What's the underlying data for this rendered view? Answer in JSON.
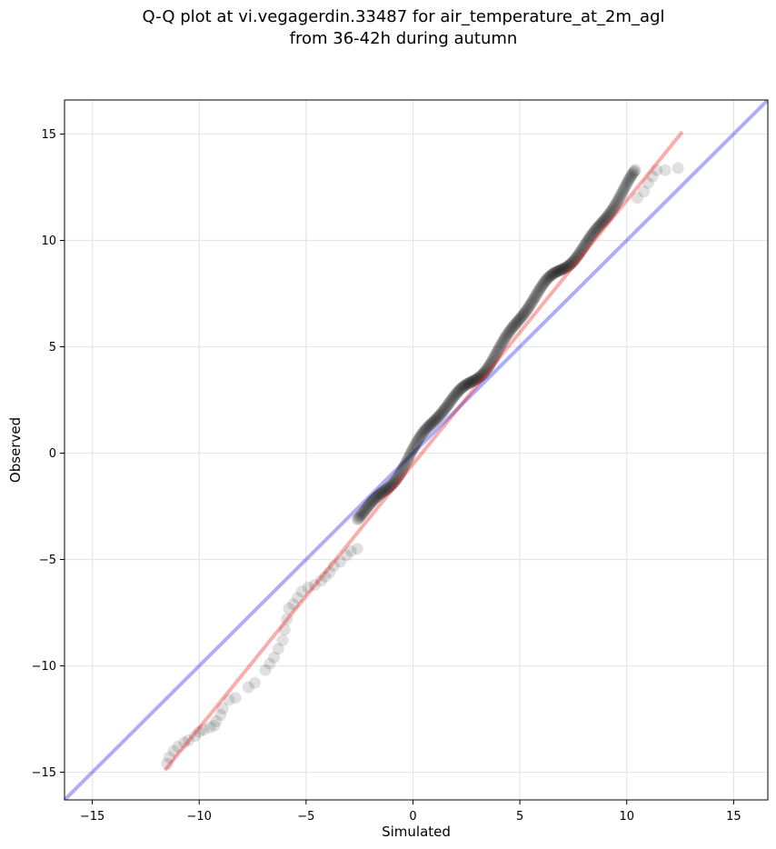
{
  "chart_data": {
    "type": "scatter",
    "title_line1": "Q-Q plot at vi.vegagerdin.33487 for air_temperature_at_2m_agl",
    "title_line2": "from 36-42h during autumn",
    "xlabel": "Simulated",
    "ylabel": "Observed",
    "xlim": [
      -16.3,
      16.6
    ],
    "ylim": [
      -16.3,
      16.6
    ],
    "xticks": [
      -15,
      -10,
      -5,
      0,
      5,
      10,
      15
    ],
    "yticks": [
      -15,
      -10,
      -5,
      0,
      5,
      10,
      15
    ],
    "xtick_labels": [
      "−15",
      "−10",
      "−5",
      "0",
      "5",
      "10",
      "15"
    ],
    "ytick_labels": [
      "−15",
      "−10",
      "−5",
      "0",
      "5",
      "10",
      "15"
    ],
    "grid": true,
    "reference_line": {
      "kind": "y=x",
      "color": "#0000ee",
      "x": [
        -16.3,
        16.6
      ],
      "y": [
        -16.3,
        16.6
      ]
    },
    "fit_line": {
      "color": "#ee0000",
      "x": [
        -11.6,
        12.6
      ],
      "y": [
        -14.9,
        15.1
      ]
    },
    "points_color": "#000000",
    "sparse_points": [
      [
        -11.5,
        -14.6
      ],
      [
        -11.4,
        -14.3
      ],
      [
        -11.2,
        -14.0
      ],
      [
        -11.0,
        -13.8
      ],
      [
        -10.7,
        -13.6
      ],
      [
        -10.5,
        -13.5
      ],
      [
        -10.2,
        -13.3
      ],
      [
        -10.0,
        -13.1
      ],
      [
        -9.8,
        -13.0
      ],
      [
        -9.5,
        -12.9
      ],
      [
        -9.3,
        -12.8
      ],
      [
        -9.2,
        -12.6
      ],
      [
        -9.0,
        -12.3
      ],
      [
        -8.9,
        -12.0
      ],
      [
        -8.6,
        -11.6
      ],
      [
        -8.3,
        -11.5
      ],
      [
        -7.7,
        -11.0
      ],
      [
        -7.4,
        -10.8
      ],
      [
        -6.9,
        -10.2
      ],
      [
        -6.7,
        -9.9
      ],
      [
        -6.5,
        -9.6
      ],
      [
        -6.3,
        -9.2
      ],
      [
        -6.1,
        -8.8
      ],
      [
        -6.0,
        -8.3
      ],
      [
        -5.9,
        -7.8
      ],
      [
        -5.8,
        -7.3
      ],
      [
        -5.6,
        -7.1
      ],
      [
        -5.4,
        -6.8
      ],
      [
        -5.2,
        -6.5
      ],
      [
        -4.9,
        -6.3
      ],
      [
        -4.6,
        -6.2
      ],
      [
        -4.3,
        -6.0
      ],
      [
        -4.1,
        -5.8
      ],
      [
        -3.9,
        -5.6
      ],
      [
        -3.7,
        -5.3
      ],
      [
        -3.4,
        -5.1
      ],
      [
        -3.1,
        -4.8
      ],
      [
        -2.9,
        -4.6
      ],
      [
        -2.6,
        -4.5
      ],
      [
        10.5,
        12.0
      ],
      [
        10.8,
        12.3
      ],
      [
        11.0,
        12.7
      ],
      [
        11.2,
        13.0
      ],
      [
        11.4,
        13.3
      ],
      [
        11.8,
        13.3
      ],
      [
        12.4,
        13.4
      ]
    ],
    "dense_segment": {
      "x_start": -2.6,
      "x_end": 10.4,
      "count": 320
    }
  }
}
